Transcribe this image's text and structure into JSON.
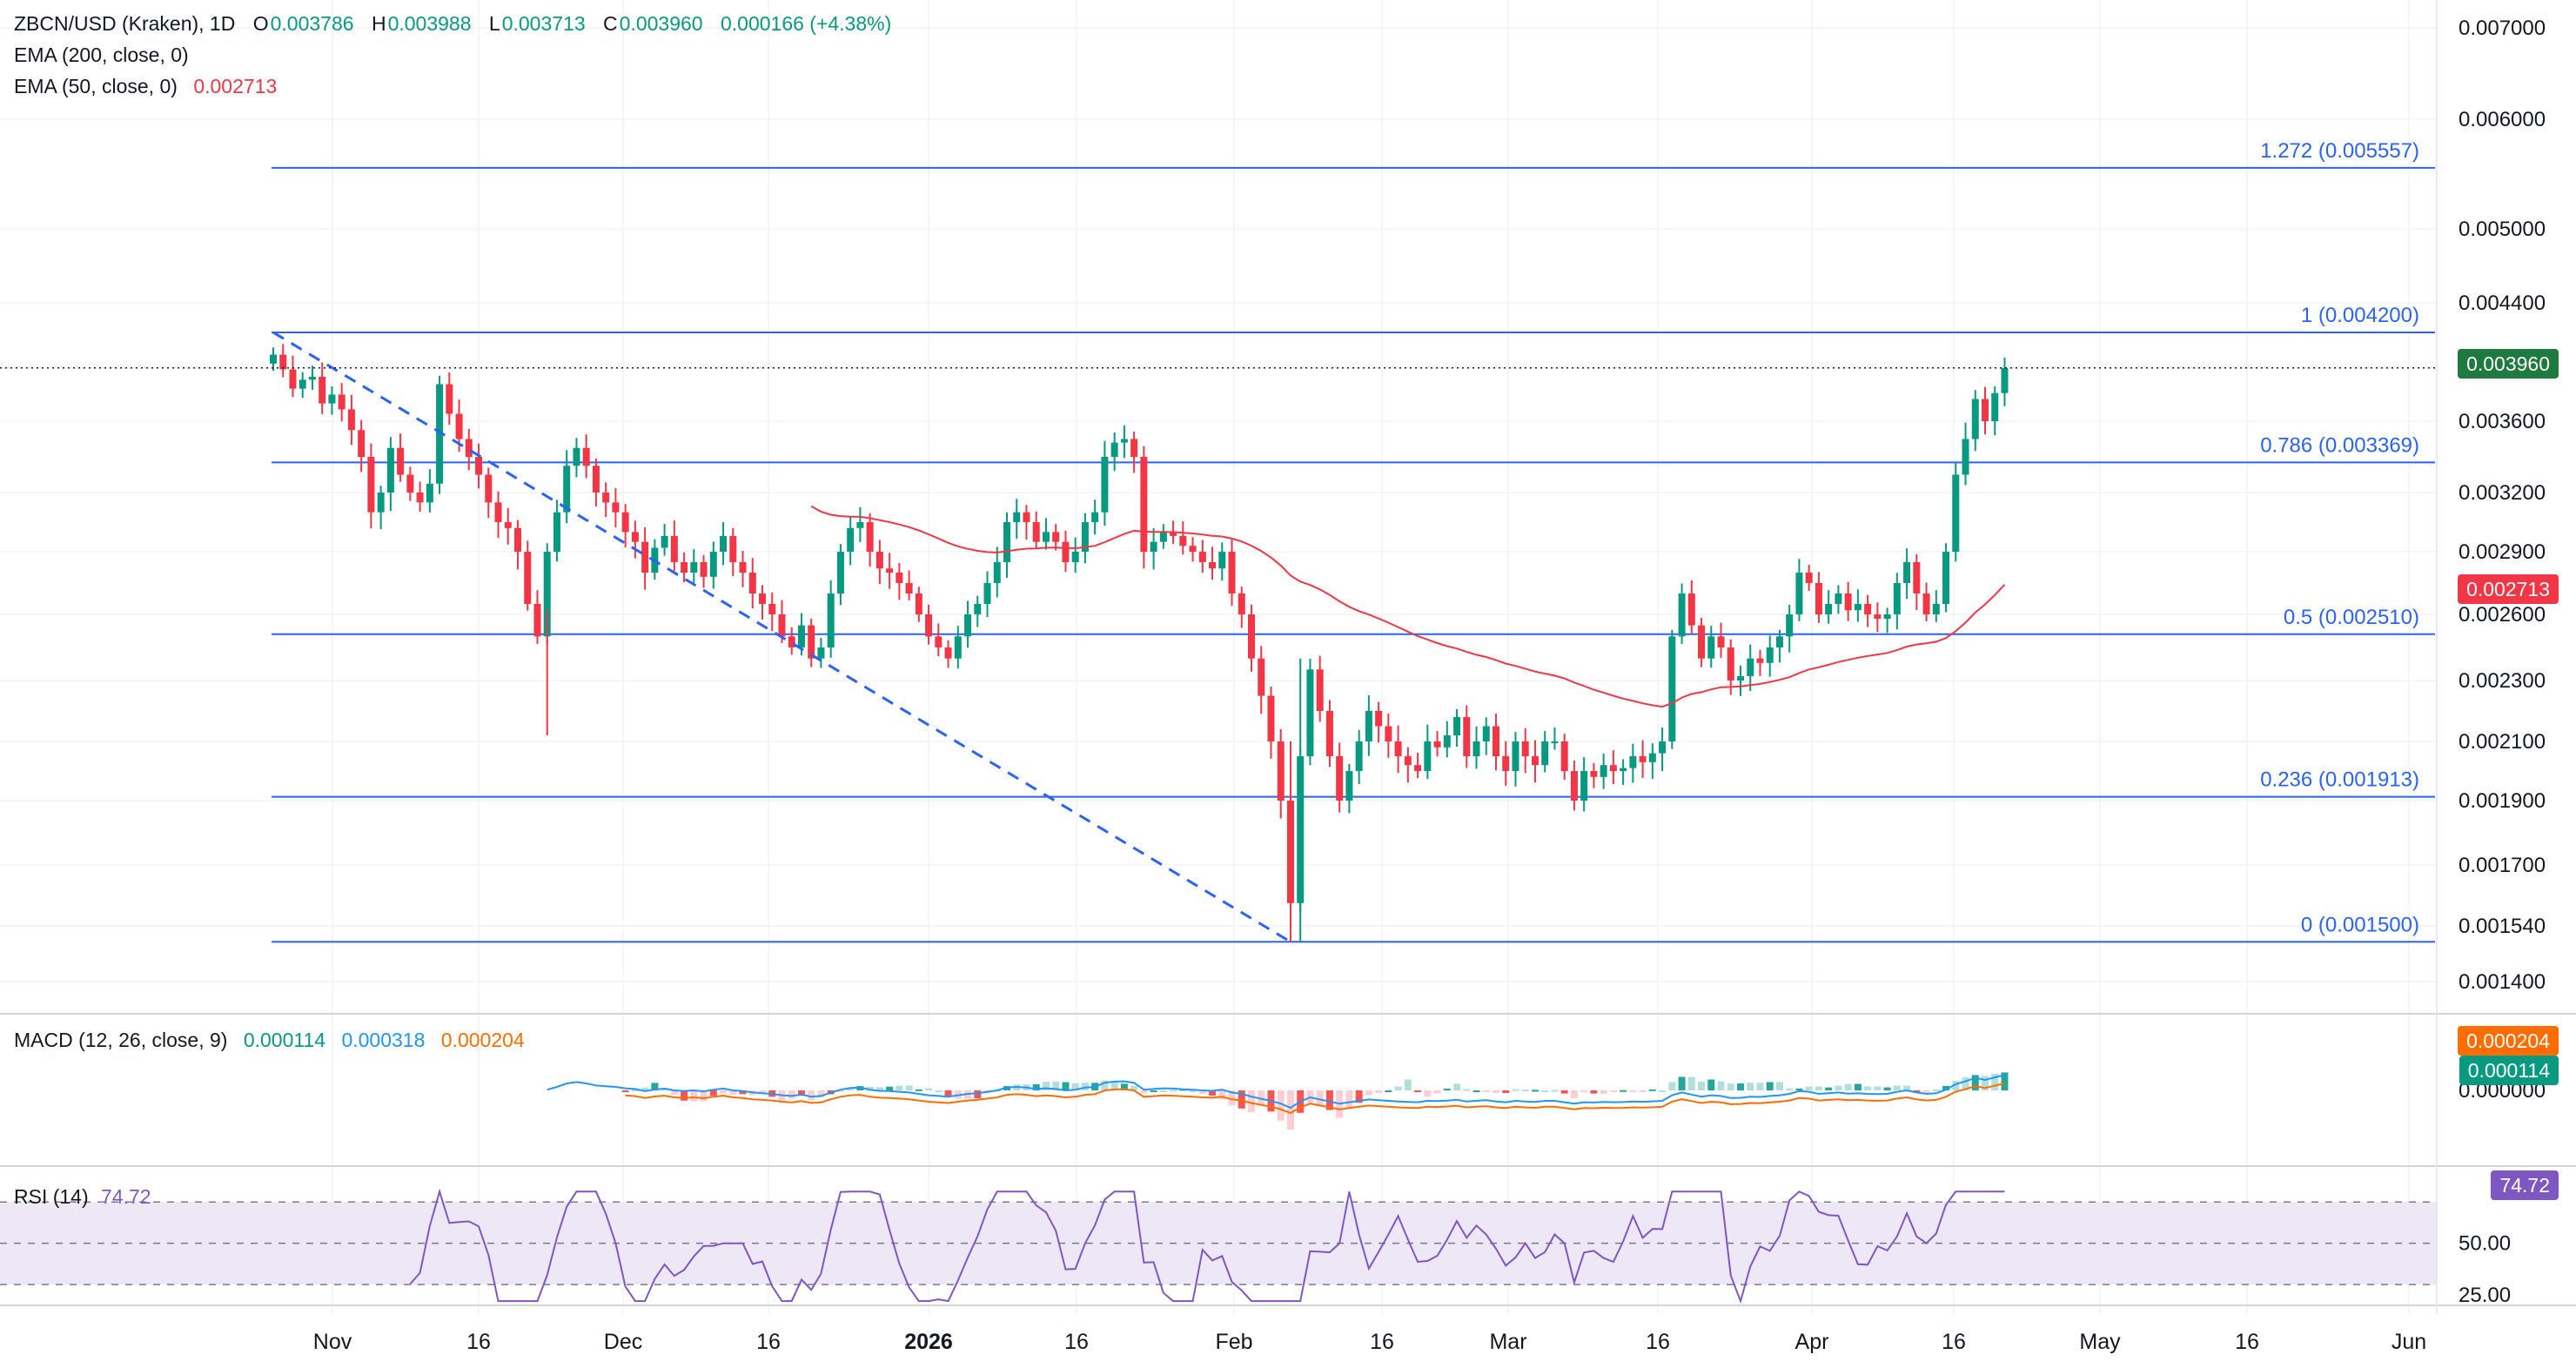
{
  "header": {
    "symbol": "ZBCN/USD (Kraken), 1D",
    "o_label": "O",
    "o": "0.003786",
    "h_label": "H",
    "h": "0.003988",
    "l_label": "L",
    "l": "0.003713",
    "c_label": "C",
    "c": "0.003960",
    "change": "0.000166 (+4.38%)",
    "ema200_label": "EMA (200, close, 0)",
    "ema50_label": "EMA (50, close, 0)",
    "ema50_value": "0.002713"
  },
  "macd_panel": {
    "label": "MACD (12, 26, close, 9)",
    "histogram": "0.000114",
    "macd": "0.000318",
    "signal": "0.000204"
  },
  "rsi_panel": {
    "label": "RSI (14)",
    "value": "74.72"
  },
  "colors": {
    "up": "#089981",
    "down": "#f23645",
    "ema50": "#f23645",
    "fib": "#2962ff",
    "macd": "#2196f3",
    "signal": "#ff6d00",
    "rsi": "#7e57c2"
  },
  "chart_data": {
    "type": "candlestick",
    "price_axis_ticks": [
      "0.007000",
      "0.006000",
      "0.005000",
      "0.004400",
      "0.003600",
      "0.003200",
      "0.002900",
      "0.002600",
      "0.002300",
      "0.002100",
      "0.001900",
      "0.001700",
      "0.001540",
      "0.001400"
    ],
    "time_axis_labels": [
      "Nov",
      "16",
      "Dec",
      "16",
      "2026",
      "16",
      "Feb",
      "16",
      "Mar",
      "16",
      "Apr",
      "16",
      "May",
      "16",
      "Jun"
    ],
    "last_price_label": "0.003960",
    "ema50_label": "0.002713",
    "fib_levels": [
      {
        "label": "1.272 (0.005557)",
        "value": 0.005557
      },
      {
        "label": "1 (0.004200)",
        "value": 0.0042
      },
      {
        "label": "0.786 (0.003369)",
        "value": 0.003369
      },
      {
        "label": "0.5 (0.002510)",
        "value": 0.00251
      },
      {
        "label": "0.236 (0.001913)",
        "value": 0.001913
      },
      {
        "label": "0 (0.001500)",
        "value": 0.0015
      }
    ],
    "trendline": {
      "from": "2025-10-24 0.004200",
      "to": "2026-02-04 0.001500"
    },
    "closes": [
      0.00405,
      0.00395,
      0.00382,
      0.00388,
      0.0039,
      0.00372,
      0.00378,
      0.00368,
      0.00355,
      0.0034,
      0.0031,
      0.0032,
      0.00345,
      0.0033,
      0.0032,
      0.00315,
      0.00325,
      0.00385,
      0.00365,
      0.0035,
      0.0034,
      0.0033,
      0.00315,
      0.00305,
      0.00302,
      0.0029,
      0.00265,
      0.0025,
      0.0029,
      0.0031,
      0.00335,
      0.00345,
      0.00335,
      0.0032,
      0.00315,
      0.0031,
      0.003,
      0.00295,
      0.0028,
      0.00292,
      0.00298,
      0.00285,
      0.0028,
      0.00285,
      0.00278,
      0.0029,
      0.00298,
      0.00285,
      0.0028,
      0.0027,
      0.00265,
      0.0026,
      0.0025,
      0.00245,
      0.00255,
      0.0024,
      0.00245,
      0.0027,
      0.0029,
      0.00302,
      0.00305,
      0.0029,
      0.00282,
      0.0028,
      0.00275,
      0.0027,
      0.0026,
      0.0025,
      0.00245,
      0.0024,
      0.0025,
      0.0026,
      0.00265,
      0.00275,
      0.00285,
      0.00305,
      0.0031,
      0.00305,
      0.00295,
      0.003,
      0.00295,
      0.00285,
      0.0029,
      0.00305,
      0.0031,
      0.0034,
      0.00348,
      0.0035,
      0.0034,
      0.0029,
      0.00295,
      0.003,
      0.00298,
      0.00293,
      0.0029,
      0.00285,
      0.00282,
      0.0029,
      0.0027,
      0.0026,
      0.0024,
      0.00225,
      0.0021,
      0.0019,
      0.0016,
      0.00205,
      0.00235,
      0.0022,
      0.00205,
      0.0019,
      0.002,
      0.0021,
      0.0022,
      0.00215,
      0.0021,
      0.00205,
      0.00202,
      0.002,
      0.0021,
      0.00208,
      0.00212,
      0.00218,
      0.00205,
      0.0021,
      0.00215,
      0.00205,
      0.002,
      0.0021,
      0.00205,
      0.00202,
      0.0021,
      0.0021,
      0.002,
      0.0019,
      0.002,
      0.00198,
      0.00202,
      0.002,
      0.00201,
      0.00205,
      0.00203,
      0.00206,
      0.0021,
      0.0025,
      0.0027,
      0.00255,
      0.0024,
      0.0025,
      0.00245,
      0.0023,
      0.00232,
      0.0024,
      0.00238,
      0.00245,
      0.0025,
      0.0026,
      0.0028,
      0.00275,
      0.0026,
      0.00265,
      0.0027,
      0.00262,
      0.00265,
      0.0026,
      0.00258,
      0.0026,
      0.00275,
      0.00285,
      0.0027,
      0.0026,
      0.00265,
      0.0029,
      0.0033,
      0.0035,
      0.00375,
      0.0036,
      0.00379,
      0.00396
    ],
    "ema50": {
      "start_index": 55,
      "start_value": 0.00316,
      "end_value": 0.002713
    },
    "macd_axis_ticks": [
      "0.000204",
      "0.000114",
      "0.000000"
    ],
    "rsi_axis_ticks": [
      "74.72",
      "50.00",
      "25.00"
    ],
    "rsi_bands": [
      70,
      50,
      30
    ]
  }
}
